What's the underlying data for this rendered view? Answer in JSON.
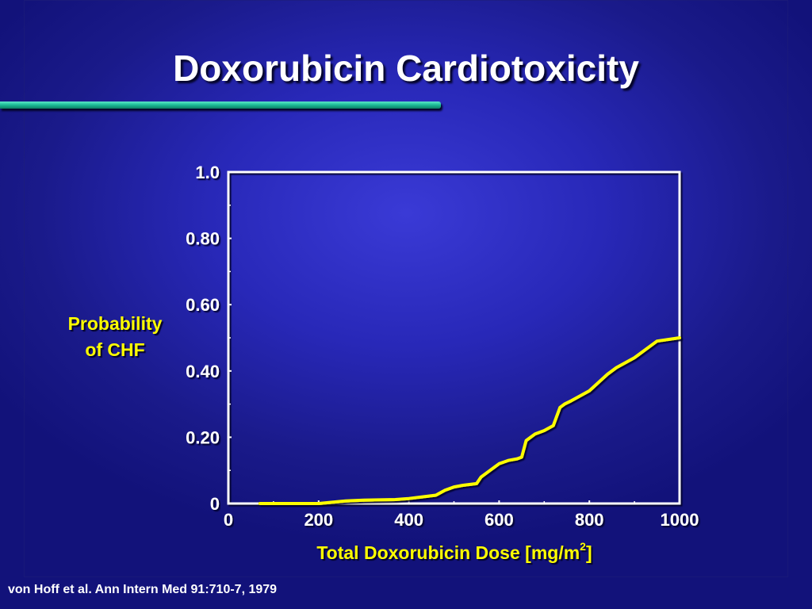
{
  "slide": {
    "title": "Doxorubicin Cardiotoxicity",
    "citation": "von Hoff et al. Ann Intern Med 91:710-7, 1979",
    "colors": {
      "background": "#2828b8",
      "title_text": "#ffffff",
      "accent_rule": "#1fbf9a",
      "label_text": "#ffff00",
      "curve": "#ffff00",
      "axes": "#ffffff"
    }
  },
  "chart_data": {
    "type": "line",
    "title": "",
    "ylabel_line1": "Probability",
    "ylabel_line2": "of CHF",
    "xlabel_main": "Total Doxorubicin Dose [mg/m",
    "xlabel_sup": "2",
    "xlabel_end": "]",
    "xlim": [
      0,
      1000
    ],
    "ylim": [
      0,
      1.0
    ],
    "x_ticks": [
      0,
      200,
      400,
      600,
      800,
      1000
    ],
    "x_tick_labels": [
      "0",
      "200",
      "400",
      "600",
      "800",
      "1000"
    ],
    "y_ticks": [
      0,
      0.2,
      0.4,
      0.6,
      0.8,
      1.0
    ],
    "y_tick_labels": [
      "0",
      "0.20",
      "0.40",
      "0.60",
      "0.80",
      "1.0"
    ],
    "grid": false,
    "series": [
      {
        "x": [
          70,
          100,
          150,
          200,
          260,
          300,
          370,
          400,
          430,
          460,
          480,
          500,
          520,
          550,
          560,
          580,
          590,
          600,
          620,
          640,
          650,
          660,
          670,
          680,
          700,
          720,
          735,
          745,
          760,
          800,
          840,
          860,
          900,
          950,
          1000
        ],
        "y": [
          0.0,
          0.0,
          0.0,
          0.0,
          0.008,
          0.01,
          0.012,
          0.015,
          0.02,
          0.025,
          0.04,
          0.05,
          0.055,
          0.06,
          0.08,
          0.1,
          0.11,
          0.12,
          0.13,
          0.135,
          0.14,
          0.19,
          0.2,
          0.21,
          0.22,
          0.235,
          0.29,
          0.3,
          0.31,
          0.34,
          0.39,
          0.41,
          0.44,
          0.49,
          0.5
        ]
      }
    ]
  }
}
